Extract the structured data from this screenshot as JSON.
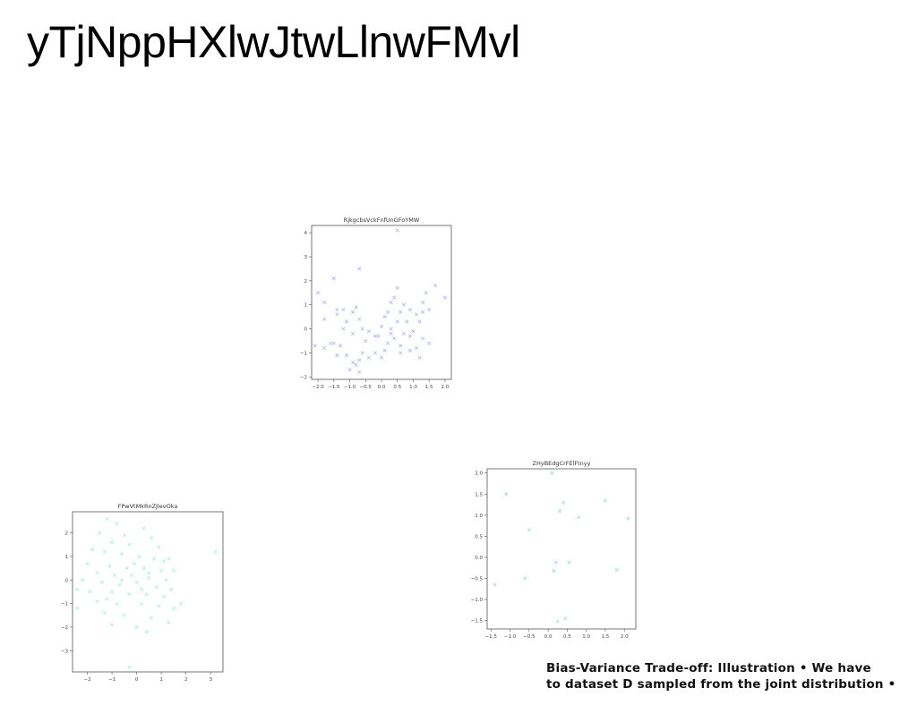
{
  "page": {
    "title": "yTjNppHXlwJtwLlnwFMvl"
  },
  "caption": {
    "line1": "Bias-Variance Trade-off: Illustration • We have",
    "line2": "to dataset D sampled from the joint distribution •"
  },
  "colors": {
    "scatter1": "#aab8ee",
    "scatter2": "#a8f0d6",
    "scatter3": "#9fd6ea"
  },
  "chart_data": [
    {
      "type": "scatter",
      "title": "RjkgcbsVckFnfUnGFoYMW",
      "marker": "x",
      "xlim": [
        -2.2,
        2.2
      ],
      "ylim": [
        -2.1,
        4.3
      ],
      "xticks": [
        -2.0,
        -1.5,
        -1.0,
        -0.5,
        0.0,
        0.5,
        1.0,
        1.5,
        2.0
      ],
      "yticks": [
        -2,
        -1,
        0,
        1,
        2,
        3,
        4
      ],
      "xtick_labels": [
        "−2.0",
        "−1.5",
        "−1.0",
        "−0.5",
        "0.0",
        "0.5",
        "1.0",
        "1.5",
        "2.0"
      ],
      "ytick_labels": [
        "−2",
        "−1",
        "0",
        "1",
        "2",
        "3",
        "4"
      ],
      "points": [
        [
          0.5,
          4.1
        ],
        [
          -0.7,
          2.5
        ],
        [
          -1.5,
          2.1
        ],
        [
          1.7,
          1.8
        ],
        [
          2.0,
          1.3
        ],
        [
          0.5,
          1.7
        ],
        [
          1.4,
          1.5
        ],
        [
          -2.0,
          1.5
        ],
        [
          -1.8,
          1.1
        ],
        [
          0.4,
          1.3
        ],
        [
          0.3,
          1.1
        ],
        [
          1.3,
          1.1
        ],
        [
          0.7,
          1.0
        ],
        [
          -0.8,
          0.9
        ],
        [
          -1.4,
          0.8
        ],
        [
          -1.2,
          0.8
        ],
        [
          1.5,
          0.8
        ],
        [
          -0.9,
          0.7
        ],
        [
          -1.4,
          0.6
        ],
        [
          0.2,
          0.7
        ],
        [
          0.6,
          0.7
        ],
        [
          0.9,
          0.8
        ],
        [
          1.3,
          0.7
        ],
        [
          -1.8,
          0.4
        ],
        [
          -1.1,
          0.3
        ],
        [
          -0.7,
          0.4
        ],
        [
          0.1,
          0.5
        ],
        [
          0.5,
          0.3
        ],
        [
          0.8,
          0.3
        ],
        [
          1.2,
          0.3
        ],
        [
          -1.2,
          0.0
        ],
        [
          -0.6,
          0.0
        ],
        [
          -0.4,
          -0.1
        ],
        [
          0.0,
          0.1
        ],
        [
          0.3,
          0.0
        ],
        [
          0.7,
          -0.2
        ],
        [
          1.0,
          -0.1
        ],
        [
          -0.9,
          -0.2
        ],
        [
          -0.2,
          -0.3
        ],
        [
          -0.1,
          -0.3
        ],
        [
          0.4,
          -0.4
        ],
        [
          0.9,
          -0.3
        ],
        [
          1.3,
          -0.4
        ],
        [
          -1.5,
          -0.6
        ],
        [
          -1.3,
          -0.7
        ],
        [
          -1.6,
          -0.6
        ],
        [
          -0.5,
          -0.5
        ],
        [
          0.2,
          -0.6
        ],
        [
          0.6,
          -0.7
        ],
        [
          1.1,
          -0.8
        ],
        [
          1.5,
          -0.6
        ],
        [
          -2.1,
          -0.7
        ],
        [
          -1.8,
          -0.8
        ],
        [
          -1.4,
          -1.1
        ],
        [
          -1.1,
          -1.1
        ],
        [
          -0.6,
          -1.0
        ],
        [
          -0.2,
          -1.0
        ],
        [
          0.1,
          -0.9
        ],
        [
          0.6,
          -1.0
        ],
        [
          0.9,
          -0.9
        ],
        [
          1.2,
          -1.2
        ],
        [
          -0.9,
          -1.4
        ],
        [
          -0.7,
          -1.3
        ],
        [
          -0.4,
          -1.2
        ],
        [
          0.0,
          -1.2
        ],
        [
          -1.0,
          -1.7
        ],
        [
          -0.7,
          -1.8
        ],
        [
          -0.8,
          -1.5
        ],
        [
          0.3,
          -0.2
        ],
        [
          1.1,
          0.6
        ]
      ]
    },
    {
      "type": "scatter",
      "title": "FPwVtMkRnZJlevOka",
      "marker": "x",
      "xlim": [
        -2.6,
        3.5
      ],
      "ylim": [
        -3.9,
        2.9
      ],
      "xticks": [
        -2,
        -1,
        0,
        1,
        2,
        3
      ],
      "yticks": [
        -3,
        -2,
        -1,
        0,
        1,
        2
      ],
      "xtick_labels": [
        "−2",
        "−1",
        "0",
        "1",
        "2",
        "3"
      ],
      "ytick_labels": [
        "−3",
        "−2",
        "−1",
        "0",
        "1",
        "2"
      ],
      "points": [
        [
          -1.2,
          2.6
        ],
        [
          -0.8,
          2.4
        ],
        [
          0.3,
          2.2
        ],
        [
          -1.5,
          2.0
        ],
        [
          -0.5,
          1.9
        ],
        [
          0.6,
          1.8
        ],
        [
          -1.0,
          1.6
        ],
        [
          -0.3,
          1.5
        ],
        [
          0.9,
          1.4
        ],
        [
          -1.8,
          1.3
        ],
        [
          -1.3,
          1.2
        ],
        [
          -0.6,
          1.1
        ],
        [
          0.1,
          1.0
        ],
        [
          0.7,
          0.9
        ],
        [
          1.3,
          0.9
        ],
        [
          3.2,
          1.2
        ],
        [
          -2.0,
          0.7
        ],
        [
          -1.1,
          0.6
        ],
        [
          -0.4,
          0.5
        ],
        [
          0.3,
          0.5
        ],
        [
          1.0,
          0.4
        ],
        [
          1.5,
          0.4
        ],
        [
          -1.6,
          0.3
        ],
        [
          -0.9,
          0.2
        ],
        [
          -0.2,
          0.2
        ],
        [
          0.5,
          0.1
        ],
        [
          1.2,
          0.0
        ],
        [
          -2.2,
          0.0
        ],
        [
          -1.4,
          -0.1
        ],
        [
          -0.7,
          -0.2
        ],
        [
          0.0,
          -0.1
        ],
        [
          0.8,
          -0.3
        ],
        [
          1.4,
          -0.4
        ],
        [
          -1.9,
          -0.5
        ],
        [
          -1.0,
          -0.5
        ],
        [
          -0.3,
          -0.6
        ],
        [
          0.4,
          -0.6
        ],
        [
          1.1,
          -0.7
        ],
        [
          -1.6,
          -0.9
        ],
        [
          -0.8,
          -1.0
        ],
        [
          0.2,
          -1.0
        ],
        [
          0.9,
          -1.1
        ],
        [
          1.5,
          -1.2
        ],
        [
          -2.4,
          -1.2
        ],
        [
          -1.3,
          -1.4
        ],
        [
          -0.5,
          -1.5
        ],
        [
          0.6,
          -1.6
        ],
        [
          1.3,
          -1.8
        ],
        [
          -1.0,
          -1.9
        ],
        [
          0.0,
          -2.0
        ],
        [
          0.4,
          -2.2
        ],
        [
          -0.3,
          -3.7
        ],
        [
          -2.4,
          -0.4
        ],
        [
          1.8,
          -1.0
        ],
        [
          0.5,
          0.3
        ],
        [
          -0.1,
          0.7
        ],
        [
          0.2,
          -0.4
        ],
        [
          -0.6,
          0.0
        ],
        [
          1.1,
          0.8
        ],
        [
          -1.2,
          -0.8
        ]
      ]
    },
    {
      "type": "scatter",
      "title": "ZHyBEdgCrFElFtnyy",
      "marker": "x",
      "xlim": [
        -1.6,
        2.3
      ],
      "ylim": [
        -1.7,
        2.1
      ],
      "xticks": [
        -1.5,
        -1.0,
        -0.5,
        0.0,
        0.5,
        1.0,
        1.5,
        2.0
      ],
      "yticks": [
        -1.5,
        -1.0,
        -0.5,
        0.0,
        0.5,
        1.0,
        1.5,
        2.0
      ],
      "xtick_labels": [
        "−1.5",
        "−1.0",
        "−0.5",
        "0.0",
        "0.5",
        "1.0",
        "1.5",
        "2.0"
      ],
      "ytick_labels": [
        "−1.5",
        "−1.0",
        "−0.5",
        "0.0",
        "0.5",
        "1.0",
        "1.5",
        "2.0"
      ],
      "points": [
        [
          0.1,
          2.0
        ],
        [
          -1.1,
          1.5
        ],
        [
          1.5,
          1.35
        ],
        [
          0.4,
          1.3
        ],
        [
          0.3,
          1.1
        ],
        [
          0.8,
          0.95
        ],
        [
          2.1,
          0.92
        ],
        [
          -0.5,
          0.65
        ],
        [
          0.2,
          -0.12
        ],
        [
          0.55,
          -0.12
        ],
        [
          1.8,
          -0.3
        ],
        [
          0.15,
          -0.32
        ],
        [
          -0.6,
          -0.5
        ],
        [
          -1.4,
          -0.65
        ],
        [
          0.45,
          -1.45
        ],
        [
          0.25,
          -1.52
        ]
      ]
    }
  ]
}
